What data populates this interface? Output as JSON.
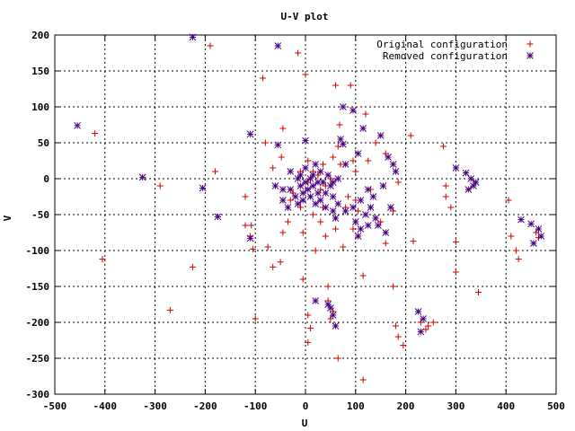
{
  "chart_data": {
    "type": "scatter",
    "title": "U-V plot",
    "xlabel": "U",
    "ylabel": "V",
    "xlim": [
      -500,
      500
    ],
    "ylim": [
      -300,
      200
    ],
    "x_ticks": [
      -500,
      -400,
      -300,
      -200,
      -100,
      0,
      100,
      200,
      300,
      400,
      500
    ],
    "y_ticks": [
      -300,
      -250,
      -200,
      -150,
      -100,
      -50,
      0,
      50,
      100,
      150,
      200
    ],
    "grid": true,
    "legend_position": "top-right",
    "series": [
      {
        "name": "Original configuration",
        "marker": "plus",
        "color": "#cc0000",
        "points": [
          [
            -420,
            63
          ],
          [
            -405,
            -112
          ],
          [
            -290,
            -10
          ],
          [
            -270,
            -183
          ],
          [
            -225,
            -123
          ],
          [
            -190,
            185
          ],
          [
            -180,
            10
          ],
          [
            -175,
            -53
          ],
          [
            -120,
            -25
          ],
          [
            -120,
            -65
          ],
          [
            -108,
            -65
          ],
          [
            -105,
            -98
          ],
          [
            -100,
            -195
          ],
          [
            -85,
            140
          ],
          [
            -80,
            50
          ],
          [
            -75,
            -95
          ],
          [
            -65,
            -123
          ],
          [
            -65,
            15
          ],
          [
            -50,
            -116
          ],
          [
            -45,
            70
          ],
          [
            -48,
            30
          ],
          [
            -45,
            -75
          ],
          [
            -30,
            -30
          ],
          [
            -35,
            -60
          ],
          [
            -15,
            175
          ],
          [
            -10,
            -40
          ],
          [
            -5,
            -140
          ],
          [
            0,
            145
          ],
          [
            -5,
            -75
          ],
          [
            5,
            -190
          ],
          [
            5,
            -228
          ],
          [
            10,
            -208
          ],
          [
            15,
            -50
          ],
          [
            20,
            -100
          ],
          [
            30,
            -15
          ],
          [
            35,
            -40
          ],
          [
            40,
            -80
          ],
          [
            45,
            -150
          ],
          [
            45,
            -170
          ],
          [
            50,
            -195
          ],
          [
            55,
            -185
          ],
          [
            60,
            -70
          ],
          [
            60,
            130
          ],
          [
            65,
            -250
          ],
          [
            68,
            75
          ],
          [
            75,
            -95
          ],
          [
            80,
            -40
          ],
          [
            90,
            130
          ],
          [
            95,
            -70
          ],
          [
            100,
            10
          ],
          [
            100,
            -30
          ],
          [
            105,
            -80
          ],
          [
            115,
            -135
          ],
          [
            115,
            -280
          ],
          [
            120,
            90
          ],
          [
            125,
            25
          ],
          [
            140,
            50
          ],
          [
            150,
            -60
          ],
          [
            160,
            -90
          ],
          [
            175,
            -45
          ],
          [
            175,
            -150
          ],
          [
            180,
            -205
          ],
          [
            185,
            -220
          ],
          [
            195,
            -232
          ],
          [
            210,
            60
          ],
          [
            215,
            -87
          ],
          [
            255,
            -200
          ],
          [
            275,
            45
          ],
          [
            280,
            -25
          ],
          [
            290,
            -40
          ],
          [
            300,
            -130
          ],
          [
            300,
            -88
          ],
          [
            345,
            -158
          ],
          [
            405,
            -30
          ],
          [
            410,
            -80
          ],
          [
            420,
            -100
          ],
          [
            425,
            -112
          ],
          [
            460,
            -75
          ],
          [
            465,
            -82
          ],
          [
            15,
            10
          ],
          [
            25,
            5
          ],
          [
            35,
            20
          ],
          [
            40,
            -10
          ],
          [
            50,
            0
          ],
          [
            5,
            -5
          ],
          [
            -10,
            10
          ],
          [
            65,
            45
          ],
          [
            70,
            20
          ],
          [
            85,
            -25
          ],
          [
            95,
            25
          ],
          [
            105,
            -45
          ],
          [
            130,
            -15
          ],
          [
            140,
            -55
          ],
          [
            160,
            35
          ],
          [
            185,
            -5
          ],
          [
            230,
            -200
          ],
          [
            240,
            -210
          ],
          [
            245,
            -205
          ],
          [
            -110,
            -80
          ],
          [
            280,
            -10
          ],
          [
            5,
            25
          ],
          [
            55,
            30
          ],
          [
            -25,
            -20
          ],
          [
            30,
            -60
          ]
        ]
      },
      {
        "name": "Removed configuration",
        "marker": "star",
        "color": "#4b0082",
        "points": [
          [
            -455,
            74
          ],
          [
            -325,
            2
          ],
          [
            -225,
            197
          ],
          [
            -205,
            -13
          ],
          [
            -175,
            -53
          ],
          [
            -110,
            62
          ],
          [
            -110,
            -83
          ],
          [
            -55,
            185
          ],
          [
            -55,
            47
          ],
          [
            -45,
            -15
          ],
          [
            -45,
            -30
          ],
          [
            -35,
            -40
          ],
          [
            -30,
            10
          ],
          [
            -20,
            -25
          ],
          [
            -15,
            0
          ],
          [
            -10,
            -10
          ],
          [
            -10,
            5
          ],
          [
            -5,
            -20
          ],
          [
            -5,
            -30
          ],
          [
            0,
            15
          ],
          [
            0,
            -5
          ],
          [
            0,
            53
          ],
          [
            5,
            -15
          ],
          [
            10,
            0
          ],
          [
            10,
            -25
          ],
          [
            15,
            -10
          ],
          [
            15,
            5
          ],
          [
            20,
            -35
          ],
          [
            20,
            20
          ],
          [
            25,
            -5
          ],
          [
            25,
            -20
          ],
          [
            30,
            -30
          ],
          [
            30,
            10
          ],
          [
            35,
            -5
          ],
          [
            40,
            -20
          ],
          [
            40,
            -40
          ],
          [
            45,
            5
          ],
          [
            50,
            -10
          ],
          [
            55,
            -25
          ],
          [
            55,
            -45
          ],
          [
            60,
            -55
          ],
          [
            65,
            -35
          ],
          [
            70,
            55
          ],
          [
            75,
            48
          ],
          [
            75,
            100
          ],
          [
            80,
            -45
          ],
          [
            95,
            95
          ],
          [
            100,
            -60
          ],
          [
            105,
            -80
          ],
          [
            110,
            -30
          ],
          [
            110,
            -70
          ],
          [
            120,
            -50
          ],
          [
            125,
            -65
          ],
          [
            130,
            -40
          ],
          [
            135,
            -25
          ],
          [
            140,
            -55
          ],
          [
            145,
            -65
          ],
          [
            150,
            60
          ],
          [
            155,
            -10
          ],
          [
            160,
            -75
          ],
          [
            165,
            30
          ],
          [
            170,
            -40
          ],
          [
            175,
            20
          ],
          [
            180,
            10
          ],
          [
            -30,
            -15
          ],
          [
            -15,
            -35
          ],
          [
            20,
            -170
          ],
          [
            45,
            -175
          ],
          [
            50,
            -180
          ],
          [
            55,
            -190
          ],
          [
            60,
            -205
          ],
          [
            225,
            -185
          ],
          [
            230,
            -213
          ],
          [
            235,
            -195
          ],
          [
            300,
            15
          ],
          [
            320,
            8
          ],
          [
            325,
            -15
          ],
          [
            330,
            0
          ],
          [
            335,
            -10
          ],
          [
            340,
            -5
          ],
          [
            430,
            -57
          ],
          [
            450,
            -63
          ],
          [
            455,
            -90
          ],
          [
            465,
            -70
          ],
          [
            470,
            -80
          ],
          [
            115,
            70
          ],
          [
            105,
            35
          ],
          [
            95,
            -40
          ],
          [
            125,
            -15
          ],
          [
            80,
            20
          ],
          [
            65,
            0
          ],
          [
            55,
            -5
          ],
          [
            -60,
            -10
          ]
        ]
      }
    ]
  }
}
